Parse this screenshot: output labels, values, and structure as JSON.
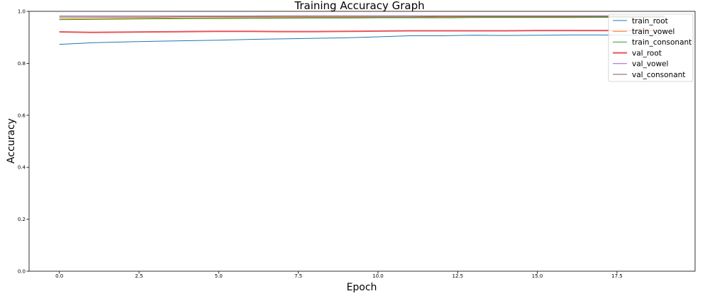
{
  "chart_data": {
    "type": "line",
    "title": "Training Accuracy Graph",
    "xlabel": "Epoch",
    "ylabel": "Accuracy",
    "xlim": [
      -0.95,
      19.95
    ],
    "ylim": [
      0.0,
      1.0
    ],
    "x": [
      0,
      1,
      2,
      3,
      4,
      5,
      6,
      7,
      8,
      9,
      10,
      11,
      12,
      13,
      14,
      15,
      16,
      17,
      18,
      19
    ],
    "xticks": [
      0.0,
      2.5,
      5.0,
      7.5,
      10.0,
      12.5,
      15.0,
      17.5
    ],
    "xtick_labels": [
      "0.0",
      "2.5",
      "5.0",
      "7.5",
      "10.0",
      "12.5",
      "15.0",
      "17.5"
    ],
    "yticks": [
      0.0,
      0.2,
      0.4,
      0.6,
      0.8,
      1.0
    ],
    "ytick_labels": [
      "0.0",
      "0.2",
      "0.4",
      "0.6",
      "0.8",
      "1.0"
    ],
    "grid": false,
    "legend_position": "top-right",
    "series": [
      {
        "name": "train_root",
        "color": "#1f77b4",
        "line_width": 1.0,
        "values": [
          0.873,
          0.879,
          0.882,
          0.885,
          0.887,
          0.889,
          0.892,
          0.894,
          0.896,
          0.898,
          0.902,
          0.906,
          0.906,
          0.908,
          0.907,
          0.908,
          0.909,
          0.909,
          0.908,
          0.909
        ]
      },
      {
        "name": "train_vowel",
        "color": "#ff7f0e",
        "line_width": 1.0,
        "values": [
          0.971,
          0.972,
          0.973,
          0.974,
          0.974,
          0.975,
          0.975,
          0.976,
          0.976,
          0.976,
          0.977,
          0.977,
          0.977,
          0.978,
          0.978,
          0.978,
          0.978,
          0.978,
          0.978,
          0.978
        ]
      },
      {
        "name": "train_consonant",
        "color": "#2ca02c",
        "line_width": 1.0,
        "values": [
          0.968,
          0.969,
          0.97,
          0.971,
          0.972,
          0.972,
          0.973,
          0.973,
          0.974,
          0.974,
          0.975,
          0.975,
          0.975,
          0.976,
          0.976,
          0.976,
          0.976,
          0.977,
          0.977,
          0.977
        ]
      },
      {
        "name": "val_root",
        "color": "#e8555a",
        "line_width": 2.0,
        "values": [
          0.921,
          0.919,
          0.92,
          0.921,
          0.922,
          0.923,
          0.923,
          0.922,
          0.922,
          0.923,
          0.924,
          0.925,
          0.925,
          0.925,
          0.925,
          0.926,
          0.926,
          0.926,
          0.926,
          0.926
        ]
      },
      {
        "name": "val_vowel",
        "color": "#9467bd",
        "line_width": 1.0,
        "values": [
          0.982,
          0.982,
          0.982,
          0.982,
          0.982,
          0.982,
          0.982,
          0.983,
          0.983,
          0.983,
          0.983,
          0.983,
          0.983,
          0.983,
          0.983,
          0.983,
          0.983,
          0.983,
          0.983,
          0.983
        ]
      },
      {
        "name": "val_consonant",
        "color": "#8c564b",
        "line_width": 1.0,
        "values": [
          0.978,
          0.978,
          0.978,
          0.978,
          0.979,
          0.979,
          0.979,
          0.979,
          0.979,
          0.979,
          0.979,
          0.979,
          0.98,
          0.98,
          0.98,
          0.98,
          0.98,
          0.98,
          0.98,
          0.98
        ]
      }
    ]
  }
}
